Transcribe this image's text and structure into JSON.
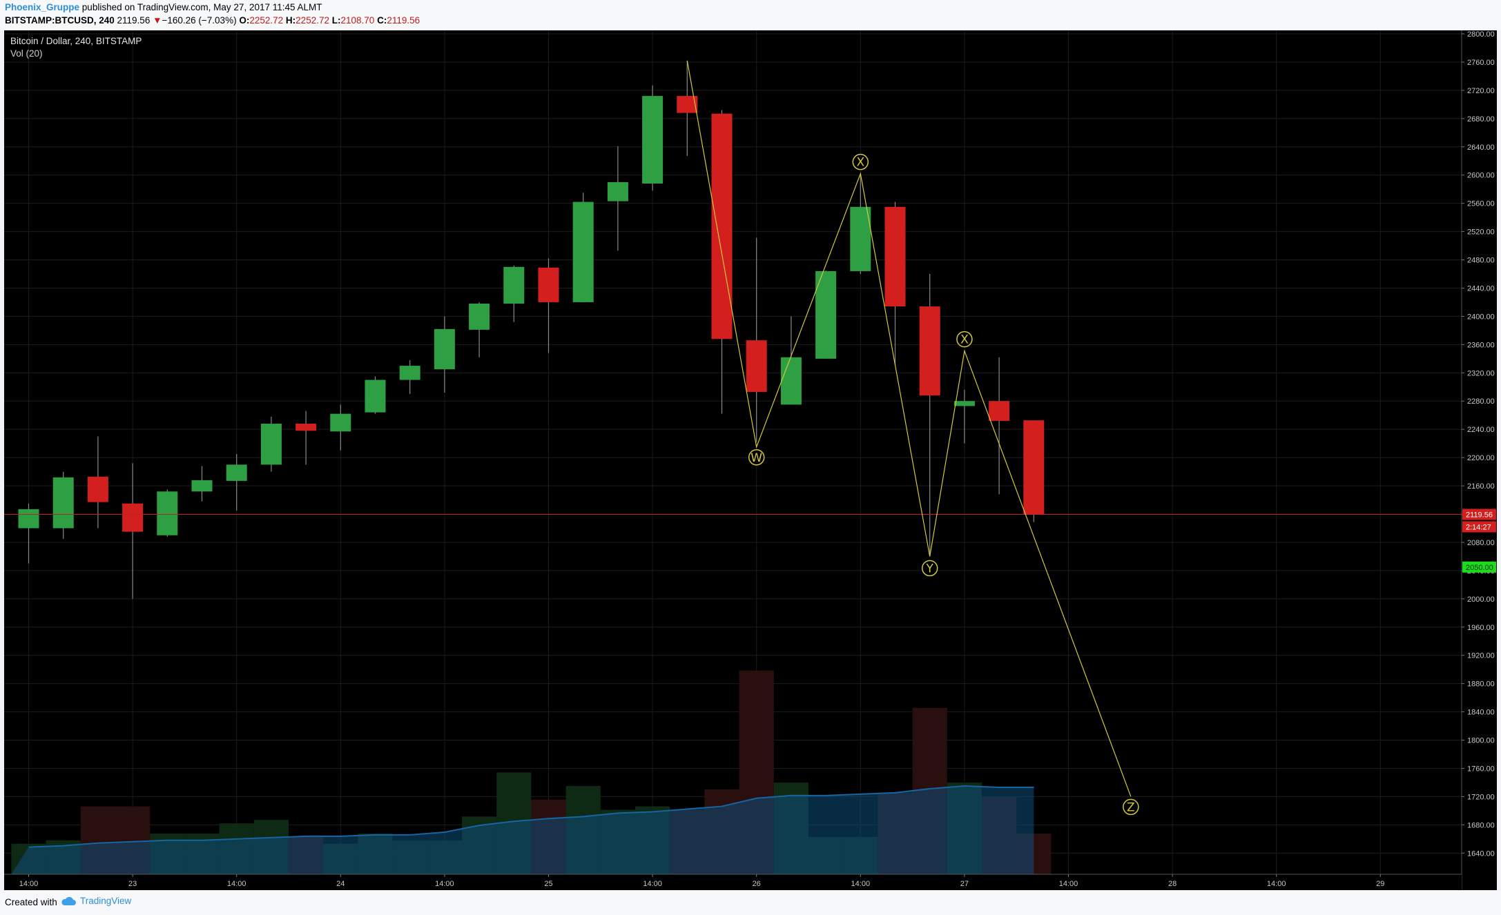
{
  "header": {
    "publisher": "Phoenix_Gruppe",
    "published_text": "published on TradingView.com, May 27, 2017 11:45 ALMT",
    "symbol": "BITSTAMP:BTCUSD, 240",
    "last_price": "2119.56",
    "change_arrow": "▼",
    "change": "−160.26 (−7.03%)",
    "o_label": "O:",
    "o_value": "2252.72",
    "h_label": "H:",
    "h_value": "2252.72",
    "l_label": "L:",
    "l_value": "2108.70",
    "c_label": "C:",
    "c_value": "2119.56"
  },
  "chart_title": "Bitcoin / Dollar, 240, BITSTAMP",
  "volume_label": "Vol (20)",
  "footer": {
    "created_with": "Created with",
    "brand": "TradingView"
  },
  "colors": {
    "up": "#2ea043",
    "down": "#d3201e",
    "wick": "#8a8a8a",
    "wave_line": "#d4c93a",
    "last_price_line": "#b3242a",
    "volume_ma": "#0e4f7c",
    "target_badge": "#1ddc1d"
  },
  "chart_data": {
    "type": "candlestick",
    "ylim": [
      1610,
      2800
    ],
    "y_ticks": [
      1640,
      1680,
      1720,
      1760,
      1800,
      1840,
      1880,
      1920,
      1960,
      2000,
      2040,
      2080,
      2120,
      2160,
      2200,
      2240,
      2280,
      2320,
      2360,
      2400,
      2440,
      2480,
      2520,
      2560,
      2600,
      2640,
      2680,
      2720,
      2760,
      2800
    ],
    "x_ticks": [
      {
        "i": 0,
        "label": "14:00"
      },
      {
        "i": 3,
        "label": "23"
      },
      {
        "i": 6,
        "label": "14:00"
      },
      {
        "i": 9,
        "label": "24"
      },
      {
        "i": 12,
        "label": "14:00"
      },
      {
        "i": 15,
        "label": "25"
      },
      {
        "i": 18,
        "label": "14:00"
      },
      {
        "i": 21,
        "label": "26"
      },
      {
        "i": 24,
        "label": "14:00"
      },
      {
        "i": 27,
        "label": "27"
      },
      {
        "i": 30,
        "label": "14:00"
      },
      {
        "i": 33,
        "label": "28"
      },
      {
        "i": 36,
        "label": "14:00"
      },
      {
        "i": 39,
        "label": "29"
      }
    ],
    "candles": [
      {
        "o": 2100,
        "h": 2135,
        "l": 2050,
        "c": 2127
      },
      {
        "o": 2100,
        "h": 2180,
        "l": 2085,
        "c": 2172
      },
      {
        "o": 2173,
        "h": 2230,
        "l": 2100,
        "c": 2137
      },
      {
        "o": 2135,
        "h": 2192,
        "l": 2000,
        "c": 2095
      },
      {
        "o": 2090,
        "h": 2155,
        "l": 2088,
        "c": 2152
      },
      {
        "o": 2152,
        "h": 2188,
        "l": 2138,
        "c": 2168
      },
      {
        "o": 2167,
        "h": 2205,
        "l": 2125,
        "c": 2190
      },
      {
        "o": 2190,
        "h": 2258,
        "l": 2180,
        "c": 2248
      },
      {
        "o": 2248,
        "h": 2266,
        "l": 2190,
        "c": 2238
      },
      {
        "o": 2237,
        "h": 2275,
        "l": 2210,
        "c": 2262
      },
      {
        "o": 2264,
        "h": 2315,
        "l": 2262,
        "c": 2310
      },
      {
        "o": 2310,
        "h": 2338,
        "l": 2290,
        "c": 2330
      },
      {
        "o": 2325,
        "h": 2400,
        "l": 2292,
        "c": 2382
      },
      {
        "o": 2381,
        "h": 2420,
        "l": 2342,
        "c": 2418
      },
      {
        "o": 2418,
        "h": 2472,
        "l": 2392,
        "c": 2470
      },
      {
        "o": 2469,
        "h": 2482,
        "l": 2348,
        "c": 2420
      },
      {
        "o": 2420,
        "h": 2575,
        "l": 2420,
        "c": 2562
      },
      {
        "o": 2563,
        "h": 2641,
        "l": 2493,
        "c": 2590
      },
      {
        "o": 2588,
        "h": 2727,
        "l": 2578,
        "c": 2712
      },
      {
        "o": 2712,
        "h": 2762,
        "l": 2627,
        "c": 2688
      },
      {
        "o": 2687,
        "h": 2692,
        "l": 2262,
        "c": 2368
      },
      {
        "o": 2366,
        "h": 2511,
        "l": 2222,
        "c": 2293
      },
      {
        "o": 2275,
        "h": 2400,
        "l": 2275,
        "c": 2342
      },
      {
        "o": 2340,
        "h": 2465,
        "l": 2340,
        "c": 2464
      },
      {
        "o": 2464,
        "h": 2602,
        "l": 2460,
        "c": 2555
      },
      {
        "o": 2555,
        "h": 2562,
        "l": 2330,
        "c": 2414
      },
      {
        "o": 2414,
        "h": 2460,
        "l": 2060,
        "c": 2288
      },
      {
        "o": 2273,
        "h": 2296,
        "l": 2220,
        "c": 2280
      },
      {
        "o": 2280,
        "h": 2342,
        "l": 2148,
        "c": 2252
      },
      {
        "o": 2252.72,
        "h": 2252.72,
        "l": 2108.7,
        "c": 2119.56
      }
    ],
    "volumes": [
      45,
      50,
      100,
      100,
      60,
      60,
      75,
      80,
      55,
      45,
      60,
      50,
      50,
      85,
      150,
      110,
      130,
      95,
      100,
      95,
      125,
      300,
      135,
      55,
      55,
      120,
      245,
      135,
      115,
      60
    ],
    "volume_ma": [
      40,
      42,
      46,
      48,
      50,
      50,
      52,
      54,
      56,
      56,
      58,
      58,
      62,
      72,
      78,
      82,
      85,
      90,
      92,
      96,
      100,
      112,
      116,
      116,
      118,
      120,
      126,
      130,
      128,
      128
    ],
    "volume_max": 320,
    "wave_pattern": [
      {
        "i": 19,
        "y": 2762,
        "label": ""
      },
      {
        "i": 21,
        "y": 2215,
        "label": "W"
      },
      {
        "i": 24,
        "y": 2602,
        "label": "X"
      },
      {
        "i": 26,
        "y": 2060,
        "label": "Y"
      },
      {
        "i": 27,
        "y": 2351,
        "label": "X"
      },
      {
        "i": 31.8,
        "y": 1720,
        "label": "Z"
      }
    ],
    "wave_label_offsets": [
      {
        "label": "W",
        "dy": 15
      },
      {
        "label": "X",
        "dy": -17
      },
      {
        "label": "Y",
        "dy": 17
      },
      {
        "label": "X2",
        "dy": -17
      },
      {
        "label": "Z",
        "dy": 15
      }
    ],
    "price_badges": [
      {
        "value": "2119.56",
        "price": 2119.56,
        "color": "#d3201e"
      },
      {
        "value": "2:14:27",
        "price": 2102,
        "color": "#d3201e"
      },
      {
        "value": "2050.00",
        "price": 2045,
        "color": "#1ddc1d"
      }
    ]
  }
}
